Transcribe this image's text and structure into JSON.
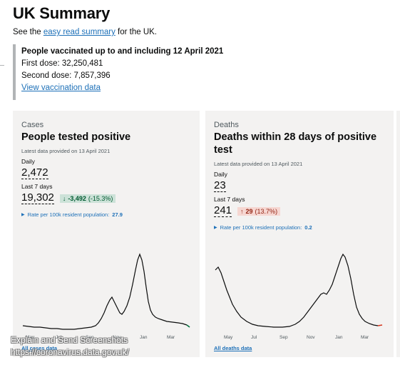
{
  "page": {
    "title": "UK Summary",
    "intro_prefix": "See the ",
    "intro_link": "easy read summary",
    "intro_suffix": " for the UK."
  },
  "vaccination": {
    "heading": "People vaccinated up to and including 12 April 2021",
    "first_dose": "First dose: 32,250,481",
    "second_dose": "Second dose: 7,857,396",
    "link": "View vaccination data"
  },
  "cases": {
    "category": "Cases",
    "title": "People tested positive",
    "date": "Latest data provided on 13 April 2021",
    "daily_label": "Daily",
    "daily_value": "2,472",
    "week_label": "Last 7 days",
    "week_value": "19,302",
    "change_arrow": "↓",
    "change_value": "-3,492",
    "change_pct": "(-15.3%)",
    "rate_label": "Rate per 100k resident population:",
    "rate_value": "27.9",
    "all_link": "All cases data",
    "months": [
      "May",
      "Jul",
      "Sep",
      "Nov",
      "Jan",
      "Mar"
    ],
    "colors": {
      "line": "#0b0c0c",
      "change_bg": "#cce2d8",
      "latest": "#00703c"
    }
  },
  "deaths": {
    "category": "Deaths",
    "title": "Deaths within 28 days of positive test",
    "date": "Latest data provided on 13 April 2021",
    "daily_label": "Daily",
    "daily_value": "23",
    "week_label": "Last 7 days",
    "week_value": "241",
    "change_arrow": "↑",
    "change_value": "29",
    "change_pct": "(13.7%)",
    "rate_label": "Rate per 100k resident population:",
    "rate_value": "0.2",
    "all_link": "All deaths data",
    "months": [
      "May",
      "Jul",
      "Sep",
      "Nov",
      "Jan",
      "Mar"
    ],
    "colors": {
      "line": "#0b0c0c",
      "change_bg": "#f6d7d2",
      "latest": "#d4351c"
    }
  },
  "watermark": {
    "line1": "Explain and Send Screenshots",
    "line2": "https://coronavirus.data.gov.uk/"
  }
}
